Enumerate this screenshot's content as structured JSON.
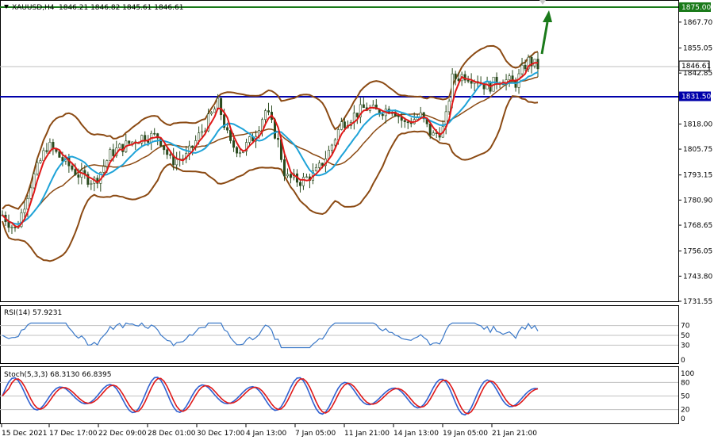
{
  "window": {
    "title": "XAUUSD,H4",
    "ohlc": "1846.21 1846.82 1845.61 1846.61"
  },
  "price_axis": {
    "labels": [
      "1875.00",
      "1867.70",
      "1855.05",
      "1842.85",
      "1831.50",
      "1818.00",
      "1805.75",
      "1793.15",
      "1780.90",
      "1768.65",
      "1756.05",
      "1743.80",
      "1731.55"
    ],
    "values": [
      1875.0,
      1867.7,
      1855.05,
      1842.85,
      1831.5,
      1818.0,
      1805.75,
      1793.15,
      1780.9,
      1768.65,
      1756.05,
      1743.8,
      1731.55
    ],
    "highlighted": [
      {
        "label": "1875.00",
        "value": 1875.0,
        "color": "#1a7a1a"
      },
      {
        "label": "1831.50",
        "value": 1831.5,
        "color": "#0000aa"
      }
    ],
    "current": {
      "label": "1846.61",
      "value": 1846.61
    }
  },
  "time_axis": {
    "labels": [
      "15 Dec 2021",
      "17 Dec 17:00",
      "22 Dec 09:00",
      "28 Dec 01:00",
      "30 Dec 17:00",
      "4 Jan 13:00",
      "7 Jan 05:00",
      "11 Jan 21:00",
      "14 Jan 13:00",
      "19 Jan 05:00",
      "21 Jan 21:00"
    ]
  },
  "rsi": {
    "title": "RSI(14) 57.9231",
    "levels": [
      "70",
      "50",
      "30",
      "0"
    ],
    "level_values": [
      70,
      50,
      30,
      0
    ]
  },
  "stoch": {
    "title": "Stoch(5,3,3) 68.3130 66.8395",
    "levels": [
      "100",
      "80",
      "50",
      "20",
      "0"
    ],
    "level_values": [
      100,
      80,
      50,
      20,
      0
    ]
  },
  "colors": {
    "candle": "#2a4a1e",
    "bollinger": "#8b4a13",
    "ma_fast": "#e01818",
    "ma_slow": "#1ea3d8",
    "resistance": "#1a7a1a",
    "support": "#0000aa",
    "arrow": "#1a7a1a",
    "rsi_line": "#3a78c8",
    "stoch_main": "#3060d0",
    "stoch_signal": "#e01818"
  },
  "icons": {
    "menu": "triangle-down-icon",
    "arrow": "up-arrow-icon",
    "shift": "chart-shift-icon"
  }
}
